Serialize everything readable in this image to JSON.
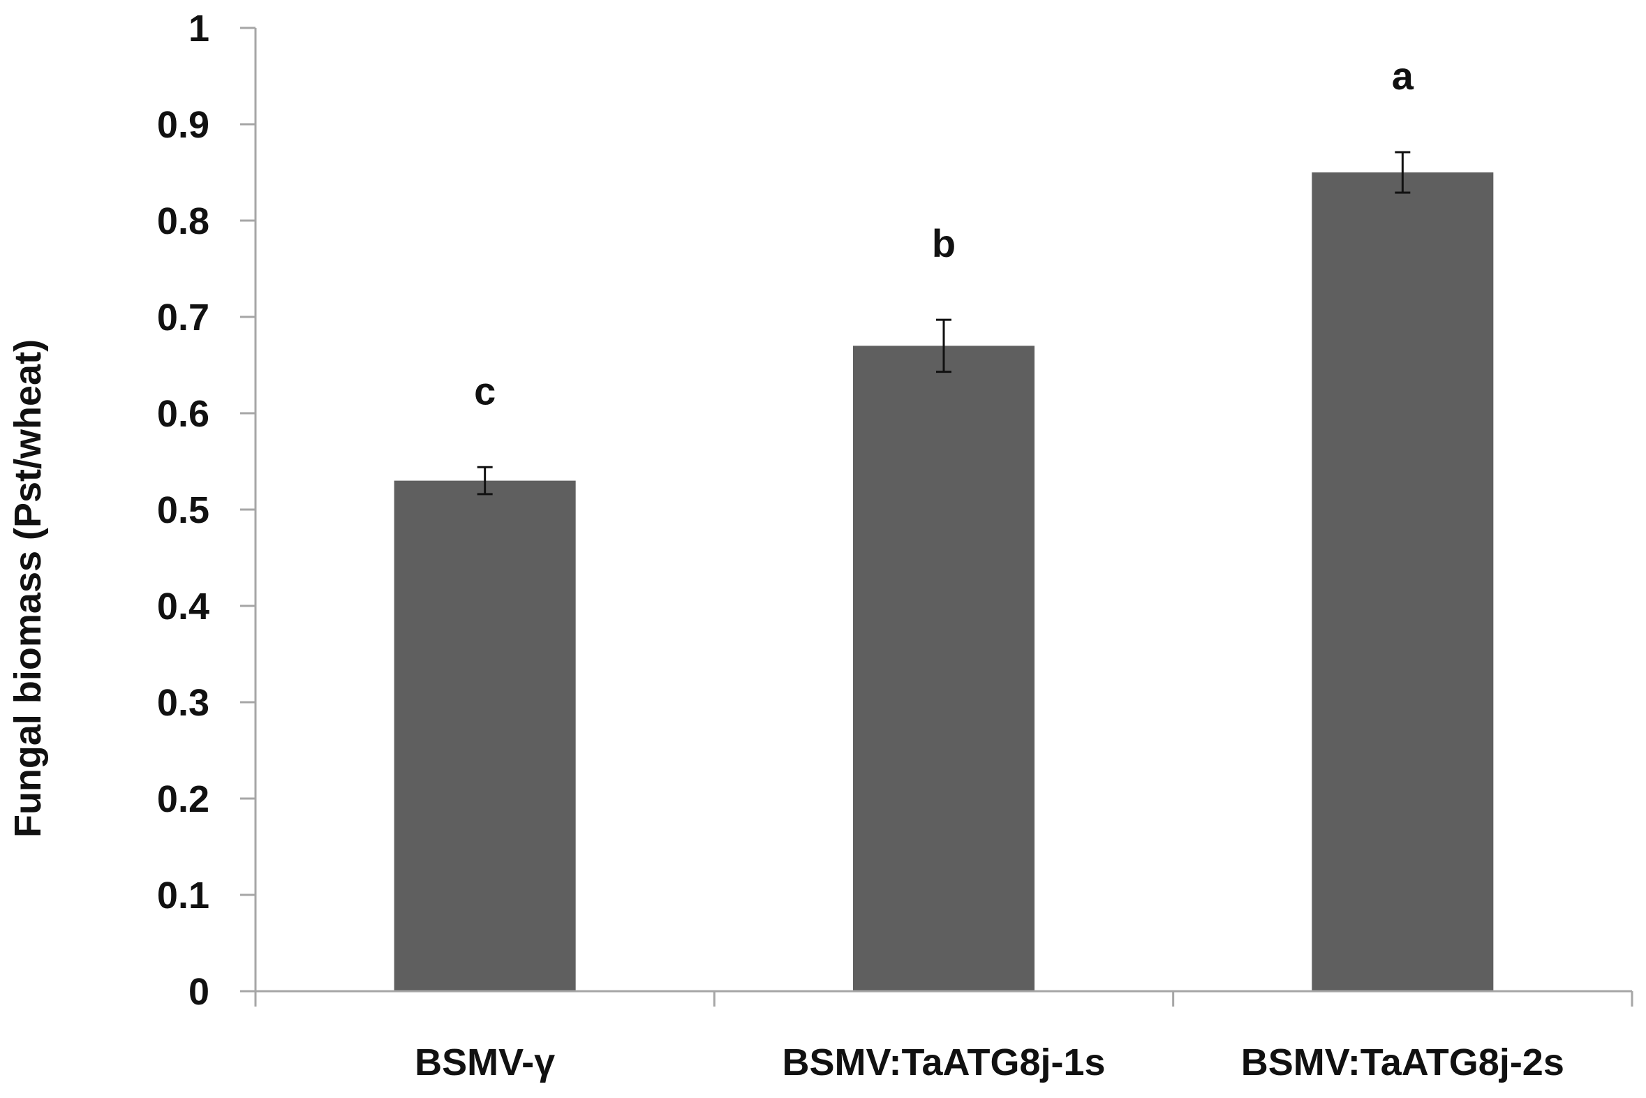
{
  "chart_data": {
    "type": "bar",
    "title": "",
    "xlabel": "",
    "ylabel": "Fungal biomass (Pst/wheat)",
    "ylim": [
      0,
      1
    ],
    "yticks": [
      "0",
      "0.1",
      "0.2",
      "0.3",
      "0.4",
      "0.5",
      "0.6",
      "0.7",
      "0.8",
      "0.9",
      "1"
    ],
    "grid": false,
    "categories": [
      "BSMV-γ",
      "BSMV:TaATG8j-1s",
      "BSMV:TaATG8j-2s"
    ],
    "values": [
      0.53,
      0.67,
      0.85
    ],
    "errors": [
      0.014,
      0.027,
      0.021
    ],
    "significance": [
      "c",
      "b",
      "a"
    ],
    "bar_color": "#5f5f5f",
    "axis_color": "#a6a6a6"
  }
}
